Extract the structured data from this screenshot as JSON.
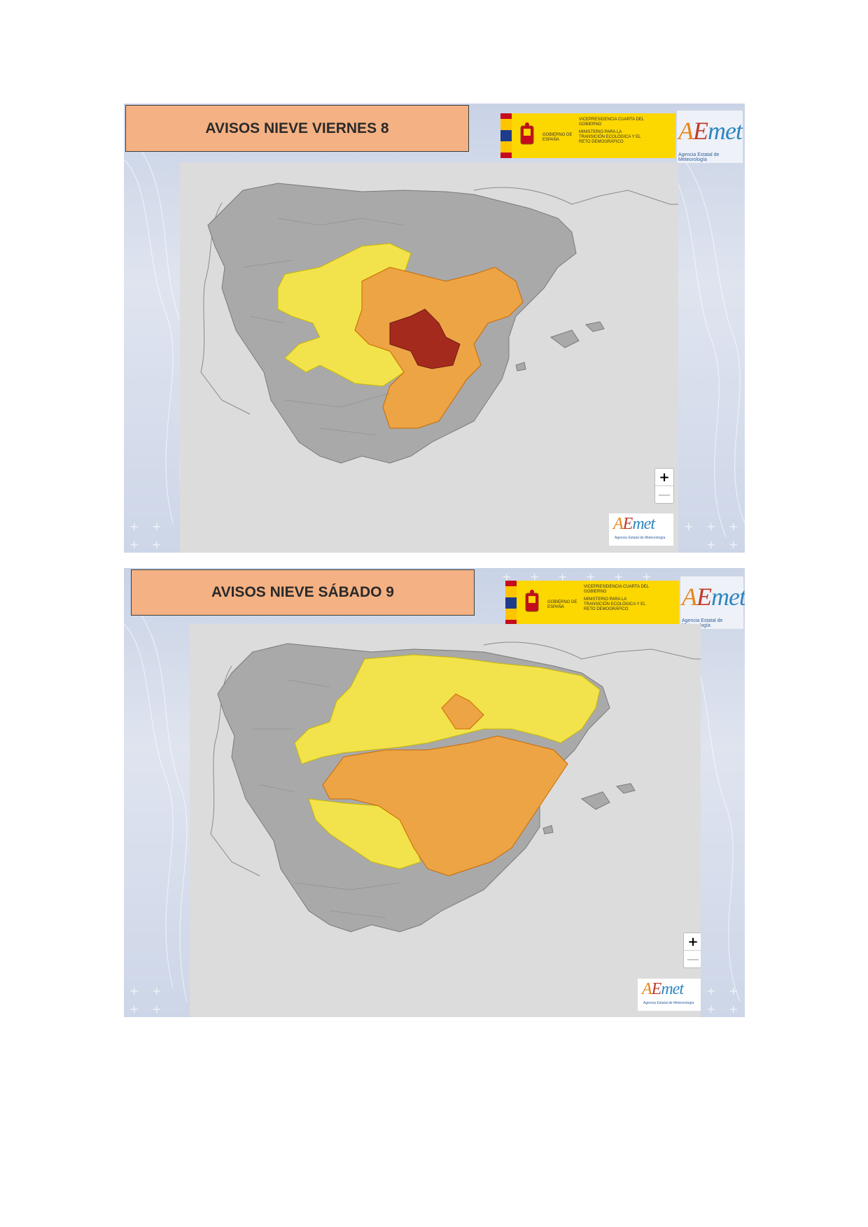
{
  "panels": [
    {
      "title": "AVISOS NIEVE VIERNES 8",
      "gov_left": "GOBIERNO DE ESPAÑA",
      "gov_right_1": "VICEPRESIDENCIA CUARTA DEL GOBIERNO",
      "gov_right_2": "MINISTERIO PARA LA TRANSICIÓN ECOLÓGICA Y EL RETO DEMOGRÁFICO",
      "logo_word": "AEmet",
      "logo_sub": "Agencia Estatal de Meteorología",
      "zoom_in": "+",
      "zoom_out": "—",
      "corner_logo_word": "AEmet",
      "corner_logo_sub": "Agencia Estatal de Meteorología",
      "warning_levels_shown": [
        "yellow",
        "orange",
        "red"
      ]
    },
    {
      "title": "AVISOS NIEVE SÁBADO 9",
      "gov_left": "GOBIERNO DE ESPAÑA",
      "gov_right_1": "VICEPRESIDENCIA CUARTA DEL GOBIERNO",
      "gov_right_2": "MINISTERIO PARA LA TRANSICIÓN ECOLÓGICA Y EL RETO DEMOGRÁFICO",
      "logo_word": "AEmet",
      "logo_sub": "Agencia Estatal de Meteorología",
      "zoom_in": "+",
      "zoom_out": "—",
      "corner_logo_word": "AEmet",
      "corner_logo_sub": "Agencia Estatal de Meteorología",
      "warning_levels_shown": [
        "yellow",
        "orange"
      ]
    }
  ],
  "colors": {
    "title_bg": "#f4b183",
    "land": "#a9a9a9",
    "sea": "#dcdcdc",
    "yellow": "#f2e34c",
    "orange": "#eda444",
    "red": "#a52a1e"
  }
}
